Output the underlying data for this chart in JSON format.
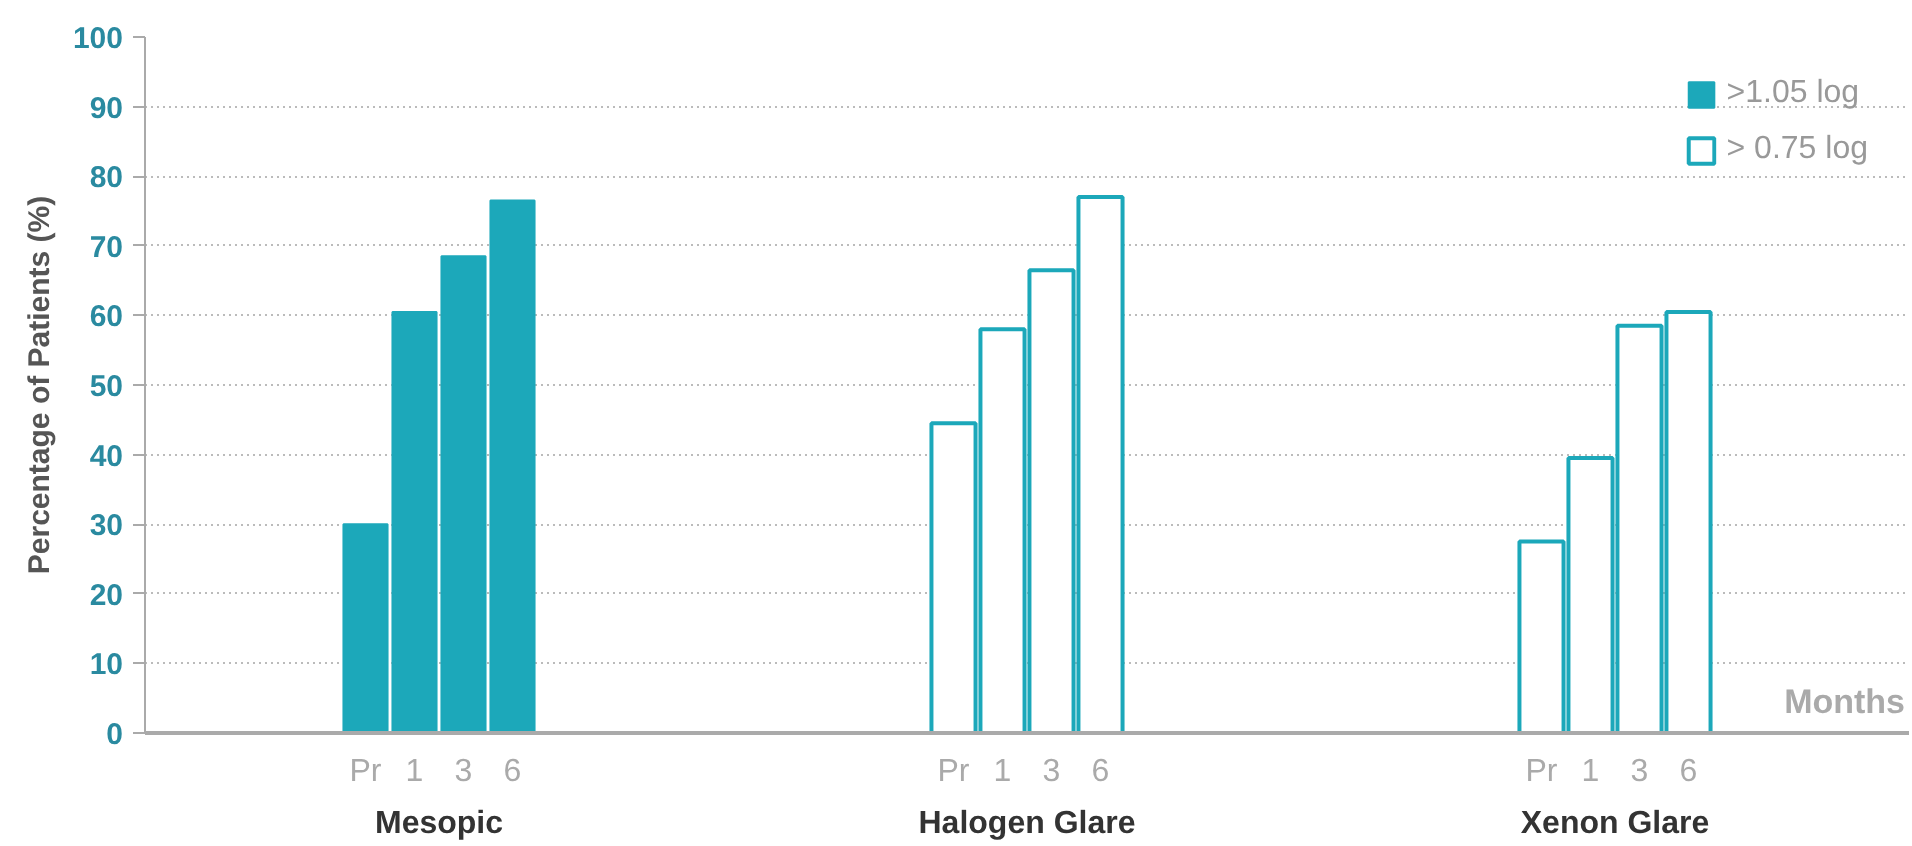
{
  "chart_data": {
    "type": "bar",
    "categories": [
      null,
      null,
      null,
      null,
      "Pr",
      "1",
      "3",
      "6",
      null,
      null,
      null,
      null,
      null,
      null,
      null,
      null,
      "Pr",
      "1",
      "3",
      "6",
      null,
      null,
      null,
      null,
      null,
      null,
      null,
      null,
      "Pr",
      "1",
      "3",
      "6",
      null,
      null,
      null,
      null
    ],
    "series": [
      {
        "name": ">1.05 log",
        "color": "#1ca8ba",
        "values": [
          null,
          null,
          null,
          null,
          30,
          60.5,
          68.5,
          76.5,
          null,
          null,
          null,
          null,
          null,
          null,
          null,
          null,
          null,
          null,
          null,
          null,
          null,
          null,
          null,
          null,
          null,
          null,
          null,
          null,
          null,
          null,
          null,
          null,
          null,
          null,
          null,
          null
        ]
      },
      {
        "name": "> 0.75 log",
        "color": "#1ca8ba",
        "values": [
          null,
          null,
          null,
          null,
          null,
          null,
          null,
          null,
          null,
          null,
          null,
          null,
          null,
          null,
          null,
          null,
          44.5,
          58,
          66.5,
          77,
          null,
          null,
          null,
          null,
          null,
          null,
          null,
          null,
          27.5,
          39.5,
          58.5,
          60.5,
          null,
          null,
          null,
          null
        ]
      }
    ],
    "ylabel": "Percentage of Patients (%)",
    "xlabel": "Months",
    "annotations": [
      "Mesopic",
      "Halogen Glare",
      "Xenon Glare"
    ],
    "ylim": [
      0,
      100
    ],
    "yticks": [
      0,
      10,
      20,
      30,
      40,
      50,
      60,
      70,
      80,
      90,
      100
    ],
    "grid": "y",
    "legend": "top right"
  }
}
